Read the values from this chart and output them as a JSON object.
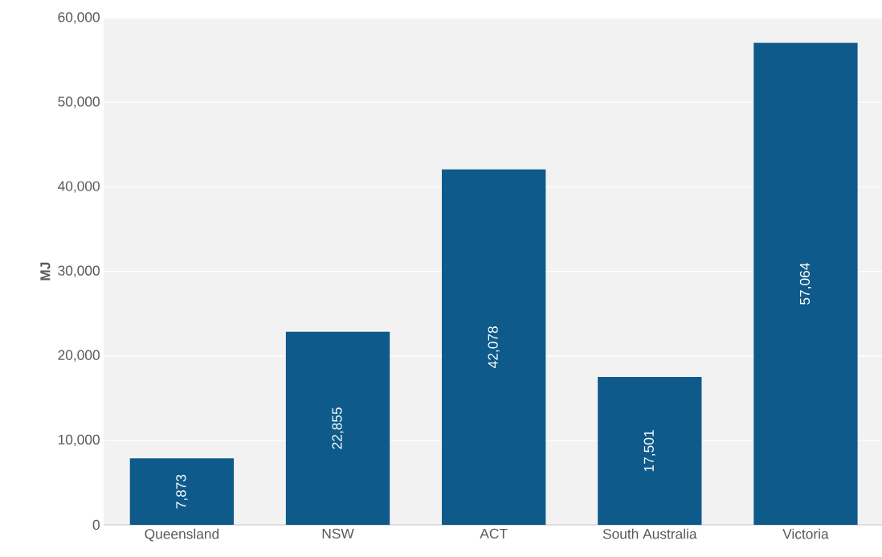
{
  "chart_data": {
    "type": "bar",
    "ylabel": "MJ",
    "categories": [
      "Queensland",
      "NSW",
      "ACT",
      "South Australia",
      "Victoria"
    ],
    "values": [
      7873,
      22855,
      42078,
      17501,
      57064
    ],
    "value_labels": [
      "7,873",
      "22,855",
      "42,078",
      "17,501",
      "57,064"
    ],
    "color": "#0e5a8a",
    "ylim": [
      0,
      60000
    ],
    "yticks": [
      {
        "value": 0,
        "label": "0"
      },
      {
        "value": 10000,
        "label": "10,000"
      },
      {
        "value": 20000,
        "label": "20,000"
      },
      {
        "value": 30000,
        "label": "30,000"
      },
      {
        "value": 40000,
        "label": "40,000"
      },
      {
        "value": 50000,
        "label": "50,000"
      },
      {
        "value": 60000,
        "label": "60,000"
      }
    ],
    "grid": "y"
  }
}
